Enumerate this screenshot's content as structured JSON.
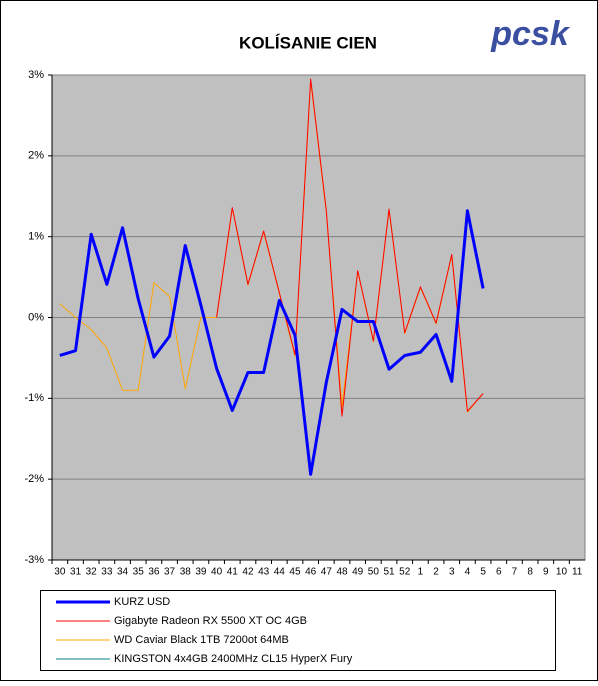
{
  "chart_data": {
    "type": "line",
    "title": "KOLÍSANIE CIEN",
    "logo": "pcsk",
    "categories": [
      "30",
      "31",
      "32",
      "33",
      "34",
      "35",
      "36",
      "37",
      "38",
      "39",
      "40",
      "41",
      "42",
      "43",
      "44",
      "45",
      "46",
      "47",
      "48",
      "49",
      "50",
      "51",
      "52",
      "1",
      "2",
      "3",
      "4",
      "5",
      "6",
      "7",
      "8",
      "9",
      "10",
      "11"
    ],
    "series": [
      {
        "name": "KURZ USD",
        "color": "#0000ff",
        "width": 3,
        "values": [
          -0.47,
          -0.41,
          1.03,
          0.41,
          1.11,
          0.23,
          -0.49,
          -0.23,
          0.89,
          0.15,
          -0.63,
          -1.15,
          -0.68,
          -0.68,
          0.21,
          -0.22,
          -1.94,
          -0.8,
          0.1,
          -0.05,
          -0.05,
          -0.64,
          -0.47,
          -0.43,
          -0.21,
          -0.79,
          1.32,
          0.36,
          null,
          null,
          null,
          null,
          null,
          null
        ]
      },
      {
        "name": "Gigabyte Radeon RX 5500 XT OC 4GB",
        "color": "#ff0000",
        "width": 1,
        "values": [
          null,
          null,
          null,
          null,
          null,
          null,
          null,
          null,
          null,
          null,
          0.0,
          1.36,
          0.41,
          1.07,
          0.31,
          -0.46,
          2.95,
          1.32,
          -1.22,
          0.58,
          -0.29,
          1.34,
          -0.19,
          0.38,
          -0.07,
          0.78,
          -1.16,
          -0.94,
          null,
          null,
          null,
          null,
          null,
          null
        ]
      },
      {
        "name": "WD Caviar Black 1TB 7200ot 64MB",
        "color": "#ffa500",
        "width": 1,
        "values": [
          0.17,
          0.0,
          -0.15,
          -0.38,
          -0.9,
          -0.9,
          0.43,
          0.26,
          -0.88,
          0.0,
          0.0,
          1.35,
          0.4,
          1.06,
          0.3,
          -0.48,
          2.93,
          1.3,
          -1.1,
          0.57,
          -0.3,
          1.33,
          -0.2,
          0.37,
          -0.08,
          0.77,
          -1.17,
          -0.94,
          null,
          null,
          null,
          null,
          null,
          null
        ]
      },
      {
        "name": "KINGSTON 4x4GB 2400MHz CL15 HyperX Fury",
        "color": "#008080",
        "width": 1,
        "values": [
          null,
          null,
          null,
          null,
          null,
          null,
          null,
          null,
          null,
          null,
          null,
          null,
          null,
          null,
          null,
          null,
          null,
          null,
          null,
          null,
          null,
          null,
          null,
          null,
          null,
          null,
          null,
          null,
          null,
          null,
          null,
          null,
          null,
          null
        ]
      }
    ],
    "ylim": [
      -3,
      3
    ],
    "yticks": [
      {
        "value": -3,
        "label": "-3%"
      },
      {
        "value": -2,
        "label": "-2%"
      },
      {
        "value": -1,
        "label": "-1%"
      },
      {
        "value": 0,
        "label": "0%"
      },
      {
        "value": 1,
        "label": "1%"
      },
      {
        "value": 2,
        "label": "2%"
      },
      {
        "value": 3,
        "label": "3%"
      }
    ],
    "grid": true
  }
}
